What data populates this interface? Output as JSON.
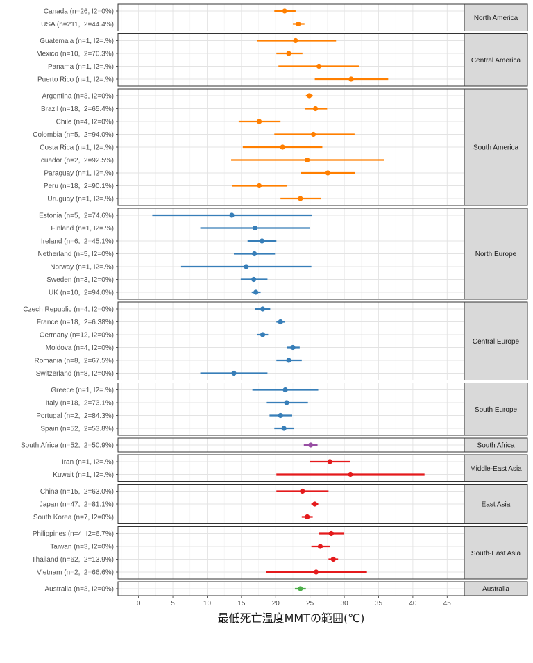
{
  "chart_data": {
    "type": "forest",
    "xlabel": "最低死亡温度MMTの範囲(℃)",
    "xlim": [
      -3,
      47.5
    ],
    "xticks": [
      0,
      5,
      10,
      15,
      20,
      25,
      30,
      35,
      40,
      45
    ],
    "grid": true,
    "colors": {
      "americas": "#ff7f00",
      "europe": "#377eb8",
      "africa": "#984ea3",
      "asia": "#e41a1c",
      "oceania": "#4daf4a"
    },
    "panels": [
      {
        "region": "North America",
        "color_key": "americas",
        "rows": [
          {
            "label": "Canada (n=26, I2=0%)",
            "est": 21.3,
            "lo": 19.8,
            "hi": 22.9
          },
          {
            "label": "USA (n=211, I2=44.4%)",
            "est": 23.3,
            "lo": 22.5,
            "hi": 24.2
          }
        ]
      },
      {
        "region": "Central America",
        "color_key": "americas",
        "rows": [
          {
            "label": "Guatemala (n=1, I2=.%)",
            "est": 22.9,
            "lo": 17.3,
            "hi": 28.8
          },
          {
            "label": "Mexico (n=10, I2=70.3%)",
            "est": 21.9,
            "lo": 20.1,
            "hi": 23.9
          },
          {
            "label": "Panama (n=1, I2=.%)",
            "est": 26.3,
            "lo": 20.4,
            "hi": 32.2
          },
          {
            "label": "Puerto Rico (n=1, I2=.%)",
            "est": 31.0,
            "lo": 25.7,
            "hi": 36.4
          }
        ]
      },
      {
        "region": "South America",
        "color_key": "americas",
        "rows": [
          {
            "label": "Argentina (n=3, I2=0%)",
            "est": 24.9,
            "lo": 24.4,
            "hi": 25.4
          },
          {
            "label": "Brazil (n=18, I2=65.4%)",
            "est": 25.8,
            "lo": 24.3,
            "hi": 27.5
          },
          {
            "label": "Chile (n=4, I2=0%)",
            "est": 17.6,
            "lo": 14.6,
            "hi": 20.7
          },
          {
            "label": "Colombia (n=5, I2=94.0%)",
            "est": 25.5,
            "lo": 19.8,
            "hi": 31.5
          },
          {
            "label": "Costa Rica (n=1, I2=.%)",
            "est": 21.0,
            "lo": 15.2,
            "hi": 26.8
          },
          {
            "label": "Ecuador (n=2, I2=92.5%)",
            "est": 24.6,
            "lo": 13.5,
            "hi": 35.8
          },
          {
            "label": "Paraguay (n=1, I2=.%)",
            "est": 27.6,
            "lo": 23.7,
            "hi": 31.6
          },
          {
            "label": "Peru (n=18, I2=90.1%)",
            "est": 17.6,
            "lo": 13.7,
            "hi": 21.6
          },
          {
            "label": "Uruguay (n=1, I2=.%)",
            "est": 23.6,
            "lo": 20.7,
            "hi": 26.6
          }
        ]
      },
      {
        "region": "North Europe",
        "color_key": "europe",
        "rows": [
          {
            "label": "Estonia (n=5, I2=74.6%)",
            "est": 13.6,
            "lo": 2.0,
            "hi": 25.3
          },
          {
            "label": "Finland (n=1, I2=.%)",
            "est": 17.0,
            "lo": 9.0,
            "hi": 25.0
          },
          {
            "label": "Ireland (n=6, I2=45.1%)",
            "est": 18.0,
            "lo": 15.9,
            "hi": 20.1
          },
          {
            "label": "Netherland (n=5, I2=0%)",
            "est": 16.9,
            "lo": 13.9,
            "hi": 19.9
          },
          {
            "label": "Norway (n=1, I2=.%)",
            "est": 15.7,
            "lo": 6.2,
            "hi": 25.2
          },
          {
            "label": "Sweden (n=3, I2=0%)",
            "est": 16.8,
            "lo": 14.9,
            "hi": 18.8
          },
          {
            "label": "UK (n=10, I2=94.0%)",
            "est": 17.1,
            "lo": 16.5,
            "hi": 17.8
          }
        ]
      },
      {
        "region": "Central Europe",
        "color_key": "europe",
        "rows": [
          {
            "label": "Czech Republic (n=4, I2=0%)",
            "est": 18.1,
            "lo": 17.0,
            "hi": 19.2
          },
          {
            "label": "France (n=18, I2=6.38%)",
            "est": 20.7,
            "lo": 20.1,
            "hi": 21.3
          },
          {
            "label": "Germany (n=12, I2=0%)",
            "est": 18.1,
            "lo": 17.3,
            "hi": 18.9
          },
          {
            "label": "Moldova (n=4, I2=0%)",
            "est": 22.5,
            "lo": 21.6,
            "hi": 23.5
          },
          {
            "label": "Romania (n=8, I2=67.5%)",
            "est": 21.9,
            "lo": 20.1,
            "hi": 23.8
          },
          {
            "label": "Switzerland (n=8, I2=0%)",
            "est": 13.9,
            "lo": 9.0,
            "hi": 18.8
          }
        ]
      },
      {
        "region": "South Europe",
        "color_key": "europe",
        "rows": [
          {
            "label": "Greece (n=1, I2=.%)",
            "est": 21.4,
            "lo": 16.6,
            "hi": 26.2
          },
          {
            "label": "Italy (n=18, I2=73.1%)",
            "est": 21.6,
            "lo": 18.7,
            "hi": 24.7
          },
          {
            "label": "Portugal (n=2, I2=84.3%)",
            "est": 20.7,
            "lo": 19.1,
            "hi": 22.4
          },
          {
            "label": "Spain (n=52, I2=53.8%)",
            "est": 21.2,
            "lo": 19.8,
            "hi": 22.7
          }
        ]
      },
      {
        "region": "South Africa",
        "color_key": "africa",
        "rows": [
          {
            "label": "South Africa (n=52, I2=50.9%)",
            "est": 25.1,
            "lo": 24.1,
            "hi": 26.1
          }
        ]
      },
      {
        "region": "Middle-East Asia",
        "color_key": "asia",
        "rows": [
          {
            "label": "Iran (n=1, I2=.%)",
            "est": 27.9,
            "lo": 25.0,
            "hi": 30.9
          },
          {
            "label": "Kuwait (n=1, I2=.%)",
            "est": 30.9,
            "lo": 20.1,
            "hi": 41.7
          }
        ]
      },
      {
        "region": "East Asia",
        "color_key": "asia",
        "rows": [
          {
            "label": "China (n=15, I2=63.0%)",
            "est": 23.9,
            "lo": 20.1,
            "hi": 27.7
          },
          {
            "label": "Japan (n=47, I2=81.1%)",
            "est": 25.7,
            "lo": 25.2,
            "hi": 26.2
          },
          {
            "label": "South Korea (n=7, I2=0%)",
            "est": 24.6,
            "lo": 23.8,
            "hi": 25.4
          }
        ]
      },
      {
        "region": "South-East Asia",
        "color_key": "asia",
        "rows": [
          {
            "label": "Philippines (n=4, I2=6.7%)",
            "est": 28.1,
            "lo": 26.3,
            "hi": 30.0
          },
          {
            "label": "Taiwan (n=3, I2=0%)",
            "est": 26.5,
            "lo": 25.2,
            "hi": 27.9
          },
          {
            "label": "Thailand (n=62, I2=13.9%)",
            "est": 28.4,
            "lo": 27.7,
            "hi": 29.1
          },
          {
            "label": "Vietnam (n=2, I2=66.6%)",
            "est": 25.9,
            "lo": 18.6,
            "hi": 33.3
          }
        ]
      },
      {
        "region": "Australia",
        "color_key": "oceania",
        "rows": [
          {
            "label": "Australia (n=3, I2=0%)",
            "est": 23.6,
            "lo": 22.8,
            "hi": 24.4
          }
        ]
      }
    ]
  }
}
